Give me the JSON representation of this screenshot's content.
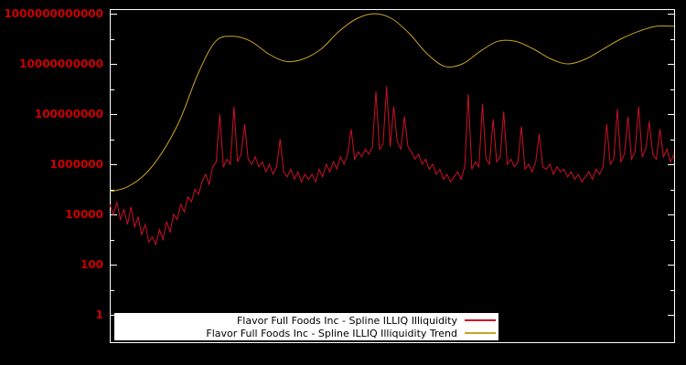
{
  "page": {
    "background": "#000000"
  },
  "chart_data": {
    "type": "line",
    "title": "",
    "xlabel": "",
    "ylabel": "",
    "y_scale": "log10",
    "ylim_log10": [
      -1.1,
      12.2
    ],
    "x_range_normalized": [
      0,
      1
    ],
    "grid": false,
    "legend_position": "bottom-center",
    "legend_background": "#ffffff",
    "tick_label_color": "#cc0000",
    "axis_color": "#ffffff",
    "yticks": [
      {
        "log10": 0,
        "label": "1"
      },
      {
        "log10": 2,
        "label": "100"
      },
      {
        "log10": 4,
        "label": "10000"
      },
      {
        "log10": 6,
        "label": "1000000"
      },
      {
        "log10": 8,
        "label": "100000000"
      },
      {
        "log10": 10,
        "label": "10000000000"
      },
      {
        "log10": 12,
        "label": "1000000000000"
      }
    ],
    "series": [
      {
        "name": "Flavor Full Foods Inc - Spline ILLIQ Illiquidity",
        "color": "#ce1126",
        "style": "jagged",
        "y_log10": [
          4.4,
          4.0,
          4.5,
          3.8,
          4.2,
          3.6,
          4.3,
          3.5,
          3.9,
          3.2,
          3.6,
          2.9,
          3.1,
          2.8,
          3.4,
          3.0,
          3.7,
          3.3,
          4.0,
          3.8,
          4.4,
          4.1,
          4.7,
          4.5,
          5.0,
          4.8,
          5.3,
          5.6,
          5.2,
          5.9,
          6.1,
          8.0,
          5.9,
          6.2,
          6.0,
          8.3,
          6.1,
          6.4,
          7.6,
          6.2,
          6.0,
          6.3,
          5.9,
          6.1,
          5.7,
          6.0,
          5.6,
          5.9,
          7.0,
          5.7,
          5.5,
          5.8,
          5.4,
          5.7,
          5.3,
          5.6,
          5.4,
          5.6,
          5.3,
          5.8,
          5.5,
          6.0,
          5.7,
          6.1,
          5.8,
          6.3,
          6.0,
          6.4,
          7.4,
          6.2,
          6.5,
          6.3,
          6.6,
          6.4,
          6.7,
          8.9,
          6.6,
          6.8,
          9.1,
          6.7,
          8.3,
          6.9,
          6.6,
          7.9,
          6.7,
          6.5,
          6.2,
          6.4,
          6.0,
          6.2,
          5.8,
          6.0,
          5.6,
          5.8,
          5.4,
          5.6,
          5.3,
          5.5,
          5.7,
          5.4,
          5.9,
          8.8,
          5.8,
          6.1,
          5.9,
          8.4,
          6.2,
          6.0,
          7.8,
          6.1,
          6.3,
          8.1,
          6.0,
          6.2,
          5.9,
          6.1,
          7.5,
          5.8,
          6.0,
          5.7,
          6.1,
          7.2,
          5.9,
          5.8,
          6.0,
          5.6,
          5.9,
          5.7,
          5.8,
          5.5,
          5.7,
          5.4,
          5.6,
          5.3,
          5.5,
          5.7,
          5.4,
          5.8,
          5.6,
          5.9,
          7.6,
          6.0,
          6.2,
          8.2,
          6.1,
          6.4,
          7.9,
          6.2,
          6.5,
          8.3,
          6.3,
          6.6,
          7.7,
          6.4,
          6.2,
          7.4,
          6.3,
          6.6,
          6.1,
          6.4
        ]
      },
      {
        "name": "Flavor Full Foods Inc - Spline ILLIQ Illiquidity Trend",
        "color": "#c9a227",
        "style": "smooth",
        "y_log10": [
          4.9,
          5.1,
          5.6,
          6.5,
          7.8,
          9.6,
          10.9,
          11.1,
          10.9,
          10.4,
          10.1,
          10.2,
          10.6,
          11.3,
          11.8,
          12.0,
          11.8,
          11.2,
          10.4,
          9.9,
          10.0,
          10.5,
          10.9,
          10.9,
          10.6,
          10.2,
          10.0,
          10.2,
          10.6,
          11.0,
          11.3,
          11.5,
          11.5
        ]
      }
    ]
  }
}
